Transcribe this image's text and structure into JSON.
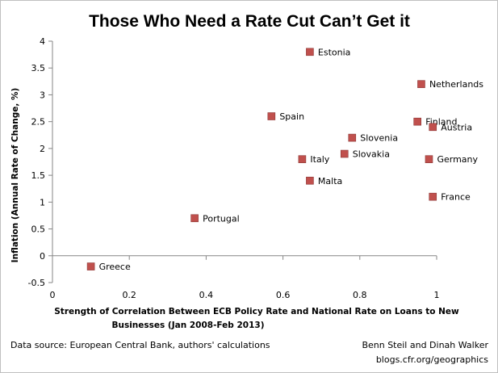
{
  "chart_data": {
    "type": "scatter",
    "title": "Those Who Need a Rate Cut Can’t Get it",
    "xlabel_lines": [
      "Strength of Correlation Between ECB Policy Rate and National Rate on Loans to New",
      "Businesses (Jan 2008-Feb 2013)"
    ],
    "ylabel": "Inflation  (Annual Rate of Change, %)",
    "xlim": [
      0,
      1
    ],
    "ylim": [
      -0.5,
      4
    ],
    "xticks": [
      "0",
      "0.2",
      "0.4",
      "0.6",
      "0.8",
      "1"
    ],
    "xtick_values": [
      0,
      0.2,
      0.4,
      0.6,
      0.8,
      1
    ],
    "yticks": [
      "-0.5",
      "0",
      "0.5",
      "1",
      "1.5",
      "2",
      "2.5",
      "3",
      "3.5",
      "4"
    ],
    "ytick_values": [
      -0.5,
      0,
      0.5,
      1,
      1.5,
      2,
      2.5,
      3,
      3.5,
      4
    ],
    "grid": false,
    "marker_color": "#c0504d",
    "points": [
      {
        "label": "Estonia",
        "x": 0.67,
        "y": 3.8
      },
      {
        "label": "Netherlands",
        "x": 0.96,
        "y": 3.2
      },
      {
        "label": "Spain",
        "x": 0.57,
        "y": 2.6
      },
      {
        "label": "Finland",
        "x": 0.95,
        "y": 2.5
      },
      {
        "label": "Austria",
        "x": 0.99,
        "y": 2.4
      },
      {
        "label": "Slovenia",
        "x": 0.78,
        "y": 2.2
      },
      {
        "label": "Slovakia",
        "x": 0.76,
        "y": 1.9
      },
      {
        "label": "Italy",
        "x": 0.65,
        "y": 1.8
      },
      {
        "label": "Germany",
        "x": 0.98,
        "y": 1.8
      },
      {
        "label": "Malta",
        "x": 0.67,
        "y": 1.4
      },
      {
        "label": "France",
        "x": 0.99,
        "y": 1.1
      },
      {
        "label": "Portugal",
        "x": 0.37,
        "y": 0.7
      },
      {
        "label": "Greece",
        "x": 0.1,
        "y": -0.2
      }
    ]
  },
  "footer": {
    "source": "Data source: European Central Bank, authors' calculations",
    "authors": "Benn Steil and Dinah Walker",
    "site": "blogs.cfr.org/geographics"
  }
}
